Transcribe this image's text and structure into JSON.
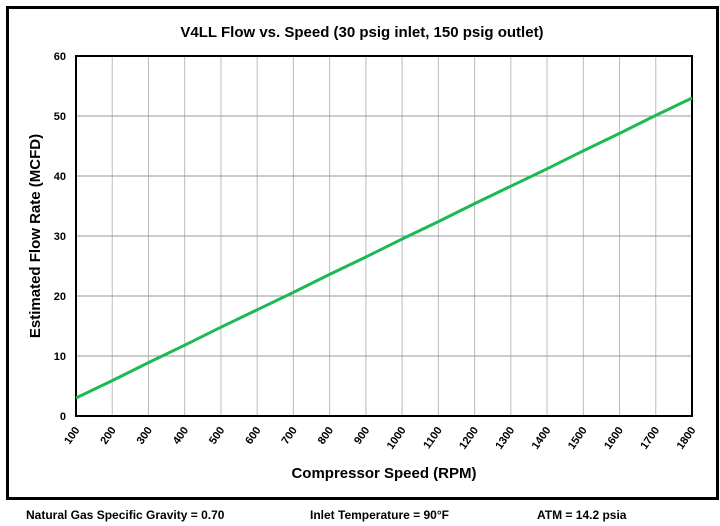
{
  "chart_data": {
    "type": "line",
    "title": "V4LL Flow vs. Speed (30 psig inlet, 150 psig outlet)",
    "xlabel": "Compressor Speed (RPM)",
    "ylabel": "Estimated Flow Rate (MCFD)",
    "x_ticks": [
      "100",
      "200",
      "300",
      "400",
      "500",
      "600",
      "700",
      "800",
      "900",
      "1000",
      "1100",
      "1200",
      "1300",
      "1400",
      "1500",
      "1600",
      "1700",
      "1800"
    ],
    "y_ticks": [
      "0",
      "10",
      "20",
      "30",
      "40",
      "50",
      "60"
    ],
    "xlim": [
      100,
      1800
    ],
    "ylim": [
      0,
      60
    ],
    "grid": true,
    "series": [
      {
        "name": "Flow",
        "color": "#1db954",
        "x": [
          100,
          200,
          300,
          400,
          500,
          600,
          700,
          800,
          900,
          1000,
          1100,
          1200,
          1300,
          1400,
          1500,
          1600,
          1700,
          1800
        ],
        "y": [
          3.0,
          5.9,
          8.9,
          11.8,
          14.8,
          17.7,
          20.6,
          23.6,
          26.5,
          29.5,
          32.4,
          35.4,
          38.3,
          41.2,
          44.2,
          47.1,
          50.1,
          53.0
        ]
      }
    ]
  },
  "footer": {
    "gravity": "Natural Gas  Specific Gravity = 0.70",
    "temperature": "Inlet Temperature = 90°F",
    "atm": "ATM = 14.2 psia"
  }
}
